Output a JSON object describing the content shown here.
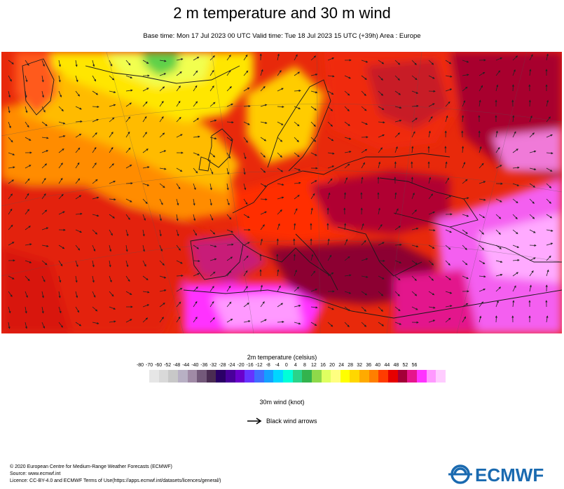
{
  "title": "2 m temperature and 30 m wind",
  "subtitle": "Base time: Mon 17 Jul 2023 00 UTC Valid time: Tue 18 Jul 2023 15 UTC (+39h) Area : Europe",
  "legend": {
    "title": "2m temperature (celsius)",
    "ticks": [
      "-80",
      "-70",
      "-60",
      "-52",
      "-48",
      "-44",
      "-40",
      "-36",
      "-32",
      "-28",
      "-24",
      "-20",
      "-16",
      "-12",
      "-8",
      "-4",
      "0",
      "4",
      "8",
      "12",
      "16",
      "20",
      "24",
      "28",
      "32",
      "36",
      "40",
      "44",
      "48",
      "52",
      "56"
    ],
    "colors": [
      "#e6e6e6",
      "#d9d9d9",
      "#c8c8c8",
      "#b8b0c4",
      "#a08aa6",
      "#73597a",
      "#4a2c52",
      "#2a0066",
      "#48009a",
      "#6a00cc",
      "#6633ff",
      "#3f6dff",
      "#14a0ff",
      "#00d6ff",
      "#00ffd8",
      "#2bd38a",
      "#33b34d",
      "#8ed94a",
      "#dfff60",
      "#ffff80",
      "#ffff00",
      "#ffd700",
      "#ffaa00",
      "#ff7f00",
      "#ff3c00",
      "#e60000",
      "#a30037",
      "#e6158c",
      "#ff33ff",
      "#ff99ff",
      "#ffccff"
    ]
  },
  "wind": {
    "title": "30m wind (knot)",
    "arrow_label": "Black wind arrows"
  },
  "footer": {
    "line1": "© 2020 European Centre for Medium-Range Weather Forecasts (ECMWF)",
    "line2": "Source: www.ecmwf.int",
    "line3": "Licence: CC-BY-4.0 and ECMWF Terms of Use(https://apps.ecmwf.int/datasets/licences/general/)"
  },
  "logo_text": "ECMWF"
}
